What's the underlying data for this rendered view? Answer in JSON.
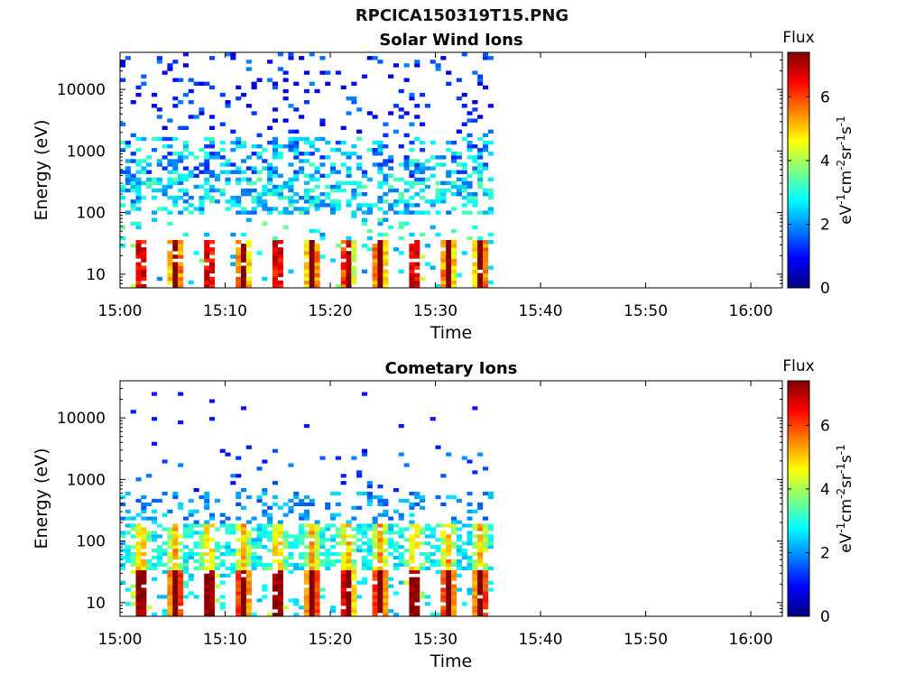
{
  "figure": {
    "title": "RPCICA150319T15.PNG"
  },
  "palette": {
    "background": "#ffffff",
    "axis": "#000000",
    "colormap": "jet"
  },
  "chart_data": [
    {
      "type": "heatmap",
      "title": "Solar Wind Ions",
      "xlabel": "Time",
      "ylabel": "Energy (eV)",
      "yscale": "log",
      "xlim": [
        "15:00",
        "16:03"
      ],
      "ylim": [
        6,
        40000
      ],
      "x_ticks": [
        "15:00",
        "15:10",
        "15:20",
        "15:30",
        "15:40",
        "15:50",
        "16:00"
      ],
      "y_ticks": [
        10,
        100,
        1000,
        10000
      ],
      "y_tick_labels": [
        "10",
        "100",
        "1000",
        "10000"
      ],
      "data_time_range": [
        "15:00",
        "15:35:30"
      ],
      "energy_range": [
        6,
        40000
      ],
      "bright_bursts_minutes": [
        2,
        5.3,
        8.5,
        11.7,
        15,
        18.3,
        21.6,
        24.7,
        28,
        31.2,
        34.3
      ],
      "burst_peak_energy_eV": 20,
      "colorbar": {
        "label": "Flux",
        "unit_label": "eV-1cm-2sr-1s-1",
        "range": [
          0,
          7.4
        ],
        "ticks": [
          0,
          2,
          4,
          6
        ],
        "tick_labels": [
          "0",
          "2",
          "4",
          "6"
        ]
      }
    },
    {
      "type": "heatmap",
      "title": "Cometary Ions",
      "xlabel": "Time",
      "ylabel": "Energy (eV)",
      "yscale": "log",
      "xlim": [
        "15:00",
        "16:03"
      ],
      "ylim": [
        6,
        40000
      ],
      "x_ticks": [
        "15:00",
        "15:10",
        "15:20",
        "15:30",
        "15:40",
        "15:50",
        "16:00"
      ],
      "y_ticks": [
        10,
        100,
        1000,
        10000
      ],
      "y_tick_labels": [
        "10",
        "100",
        "1000",
        "10000"
      ],
      "data_time_range": [
        "15:00",
        "15:35:30"
      ],
      "energy_range": [
        6,
        30000
      ],
      "bright_bursts_minutes": [
        2,
        5.3,
        8.5,
        11.7,
        15,
        18.3,
        21.6,
        24.7,
        28,
        31.2,
        34.3
      ],
      "burst_peak_energy_eV": 18,
      "colorbar": {
        "label": "Flux",
        "unit_label": "eV-1cm-2sr-1s-1",
        "range": [
          0,
          7.4
        ],
        "ticks": [
          0,
          2,
          4,
          6
        ],
        "tick_labels": [
          "0",
          "2",
          "4",
          "6"
        ]
      }
    }
  ]
}
